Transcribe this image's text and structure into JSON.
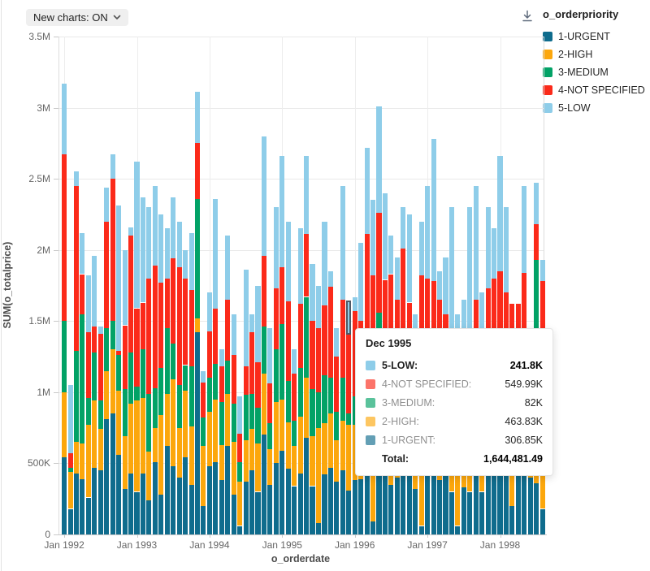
{
  "toolbar": {
    "new_charts_label": "New charts: ON"
  },
  "download_icon": "download-icon",
  "legend": {
    "title": "o_orderpriority",
    "items": [
      {
        "label": "1-URGENT",
        "color": "#0f6c8d"
      },
      {
        "label": "2-HIGH",
        "color": "#fca70c"
      },
      {
        "label": "3-MEDIUM",
        "color": "#02a266"
      },
      {
        "label": "4-NOT SPECIFIED",
        "color": "#fb2a1a"
      },
      {
        "label": "5-LOW",
        "color": "#8ecde9"
      }
    ]
  },
  "tooltip": {
    "title": "Dec 1995",
    "rows": [
      {
        "series": "5-LOW",
        "label": "5-LOW:",
        "value": "241.8K",
        "emphasis": true
      },
      {
        "series": "4-NOT SPECIFIED",
        "label": "4-NOT SPECIFIED:",
        "value": "549.99K",
        "emphasis": false
      },
      {
        "series": "3-MEDIUM",
        "label": "3-MEDIUM:",
        "value": "82K",
        "emphasis": false
      },
      {
        "series": "2-HIGH",
        "label": "2-HIGH:",
        "value": "463.83K",
        "emphasis": false
      },
      {
        "series": "1-URGENT",
        "label": "1-URGENT:",
        "value": "306.85K",
        "emphasis": false
      }
    ],
    "total_label": "Total:",
    "total_value": "1,644,481.49"
  },
  "chart_data": {
    "type": "bar",
    "stacked": true,
    "xlabel": "o_orderdate",
    "ylabel": "SUM(o_totalprice)",
    "ylim": [
      0,
      3500000
    ],
    "grid": true,
    "legend_position": "top-right",
    "series_order": [
      "1-URGENT",
      "2-HIGH",
      "3-MEDIUM",
      "4-NOT SPECIFIED",
      "5-LOW"
    ],
    "y_ticks": [
      {
        "label": "0",
        "value_k": 0
      },
      {
        "label": "500K",
        "value_k": 500
      },
      {
        "label": "1M",
        "value_k": 1000
      },
      {
        "label": "1.5M",
        "value_k": 1500
      },
      {
        "label": "2M",
        "value_k": 2000
      },
      {
        "label": "2.5M",
        "value_k": 2500
      },
      {
        "label": "3M",
        "value_k": 3000
      },
      {
        "label": "3.5M",
        "value_k": 3500
      }
    ],
    "x_ticks": [
      {
        "label": "Jan 1992",
        "month_index": 0
      },
      {
        "label": "Jan 1993",
        "month_index": 12
      },
      {
        "label": "Jan 1994",
        "month_index": 24
      },
      {
        "label": "Jan 1995",
        "month_index": 36
      },
      {
        "label": "Jan 1996",
        "month_index": 48
      },
      {
        "label": "Jan 1997",
        "month_index": 60
      },
      {
        "label": "Jan 1998",
        "month_index": 72
      }
    ],
    "hover": {
      "month_index": 47,
      "series": "5-LOW"
    },
    "values_unit": "thousands",
    "months": [
      {
        "label": "Jan 1992",
        "values": [
          540,
          460,
          500,
          1170,
          500
        ]
      },
      {
        "label": "Feb 1992",
        "values": [
          180,
          260,
          30,
          100,
          480
        ]
      },
      {
        "label": "Mar 1992",
        "values": [
          430,
          220,
          640,
          1160,
          100
        ]
      },
      {
        "label": "Apr 1992",
        "values": [
          390,
          250,
          910,
          280,
          290
        ]
      },
      {
        "label": "May 1992",
        "values": [
          260,
          510,
          190,
          460,
          400
        ]
      },
      {
        "label": "Jun 1992",
        "values": [
          470,
          470,
          340,
          180,
          500
        ]
      },
      {
        "label": "Jul 1992",
        "values": [
          450,
          290,
          200,
          470,
          50
        ]
      },
      {
        "label": "Aug 1992",
        "values": [
          810,
          340,
          300,
          750,
          240
        ]
      },
      {
        "label": "Sep 1992",
        "values": [
          850,
          450,
          200,
          1000,
          170
        ]
      },
      {
        "label": "Oct 1992",
        "values": [
          560,
          450,
          250,
          30,
          1020
        ]
      },
      {
        "label": "Nov 1992",
        "values": [
          320,
          370,
          330,
          450,
          530
        ]
      },
      {
        "label": "Dec 1992",
        "values": [
          430,
          490,
          360,
          820,
          60
        ]
      },
      {
        "label": "Jan 1993",
        "values": [
          300,
          640,
          100,
          550,
          1030
        ]
      },
      {
        "label": "Feb 1993",
        "values": [
          430,
          530,
          340,
          330,
          740
        ]
      },
      {
        "label": "Mar 1993",
        "values": [
          240,
          340,
          410,
          810,
          500
        ]
      },
      {
        "label": "Apr 1993",
        "values": [
          510,
          240,
          280,
          860,
          560
        ]
      },
      {
        "label": "May 1993",
        "values": [
          280,
          560,
          330,
          600,
          480
        ]
      },
      {
        "label": "Jun 1993",
        "values": [
          620,
          370,
          460,
          350,
          350
        ]
      },
      {
        "label": "Jul 1993",
        "values": [
          480,
          610,
          250,
          600,
          430
        ]
      },
      {
        "label": "Aug 1993",
        "values": [
          400,
          350,
          300,
          830,
          320
        ]
      },
      {
        "label": "Sep 1993",
        "values": [
          540,
          470,
          180,
          610,
          200
        ]
      },
      {
        "label": "Oct 1993",
        "values": [
          350,
          410,
          420,
          540,
          400
        ]
      },
      {
        "label": "Nov 1993",
        "values": [
          1420,
          100,
          840,
          390,
          360
        ]
      },
      {
        "label": "Dec 1993",
        "values": [
          200,
          420,
          200,
          250,
          80
        ]
      },
      {
        "label": "Jan 1994",
        "values": [
          480,
          380,
          240,
          330,
          270
        ]
      },
      {
        "label": "Feb 1994",
        "values": [
          510,
          440,
          250,
          390,
          770
        ]
      },
      {
        "label": "Mar 1994",
        "values": [
          380,
          250,
          300,
          250,
          120
        ]
      },
      {
        "label": "Apr 1994",
        "values": [
          620,
          370,
          230,
          430,
          450
        ]
      },
      {
        "label": "May 1994",
        "values": [
          280,
          370,
          270,
          340,
          290
        ]
      },
      {
        "label": "Jun 1994",
        "values": [
          60,
          310,
          140,
          200,
          260
        ]
      },
      {
        "label": "Jul 1994",
        "values": [
          370,
          290,
          320,
          200,
          680
        ]
      },
      {
        "label": "Aug 1994",
        "values": [
          450,
          290,
          250,
          430,
          130
        ]
      },
      {
        "label": "Sep 1994",
        "values": [
          300,
          340,
          250,
          320,
          540
        ]
      },
      {
        "label": "Oct 1994",
        "values": [
          700,
          430,
          330,
          500,
          840
        ]
      },
      {
        "label": "Nov 1994",
        "values": [
          350,
          250,
          180,
          280,
          390
        ]
      },
      {
        "label": "Dec 1994",
        "values": [
          500,
          430,
          370,
          430,
          570
        ]
      },
      {
        "label": "Jan 1995",
        "values": [
          590,
          360,
          530,
          400,
          780
        ]
      },
      {
        "label": "Feb 1995",
        "values": [
          460,
          330,
          290,
          560,
          560
        ]
      },
      {
        "label": "Mar 1995",
        "values": [
          340,
          280,
          180,
          330,
          170
        ]
      },
      {
        "label": "Apr 1995",
        "values": [
          430,
          400,
          340,
          450,
          530
        ]
      },
      {
        "label": "May 1995",
        "values": [
          680,
          420,
          570,
          440,
          550
        ]
      },
      {
        "label": "Jun 1995",
        "values": [
          340,
          350,
          330,
          480,
          400
        ]
      },
      {
        "label": "Jul 1995",
        "values": [
          80,
          670,
          250,
          450,
          300
        ]
      },
      {
        "label": "Aug 1995",
        "values": [
          420,
          360,
          340,
          490,
          590
        ]
      },
      {
        "label": "Sep 1995",
        "values": [
          470,
          380,
          250,
          640,
          110
        ]
      },
      {
        "label": "Oct 1995",
        "values": [
          370,
          290,
          200,
          390,
          200
        ]
      },
      {
        "label": "Nov 1995",
        "values": [
          450,
          350,
          300,
          550,
          800
        ]
      },
      {
        "label": "Dec 1995",
        "values": [
          306.85,
          463.83,
          82,
          549.99,
          241.8
        ]
      },
      {
        "label": "Jan 1996",
        "values": [
          380,
          390,
          200,
          600,
          100
        ]
      },
      {
        "label": "Feb 1996",
        "values": [
          390,
          450,
          340,
          320,
          550
        ]
      },
      {
        "label": "Mar 1996",
        "values": [
          430,
          340,
          290,
          1050,
          610
        ]
      },
      {
        "label": "Apr 1996",
        "values": [
          90,
          810,
          280,
          640,
          530
        ]
      },
      {
        "label": "May 1996",
        "values": [
          640,
          500,
          420,
          700,
          750
        ]
      },
      {
        "label": "Jun 1996",
        "values": [
          520,
          430,
          300,
          540,
          610
        ]
      },
      {
        "label": "Jul 1996",
        "values": [
          350,
          380,
          270,
          830,
          270
        ]
      },
      {
        "label": "Aug 1996",
        "values": [
          400,
          350,
          300,
          600,
          300
        ]
      },
      {
        "label": "Sep 1996",
        "values": [
          430,
          430,
          250,
          900,
          290
        ]
      },
      {
        "label": "Oct 1996",
        "values": [
          540,
          400,
          350,
          340,
          620
        ]
      },
      {
        "label": "Nov 1996",
        "values": [
          320,
          300,
          180,
          460,
          290
        ]
      },
      {
        "label": "Dec 1996",
        "values": [
          60,
          720,
          300,
          740,
          380
        ]
      },
      {
        "label": "Jan 1997",
        "values": [
          520,
          380,
          300,
          600,
          650
        ]
      },
      {
        "label": "Feb 1997",
        "values": [
          450,
          420,
          350,
          560,
          1000
        ]
      },
      {
        "label": "Mar 1997",
        "values": [
          380,
          330,
          250,
          690,
          200
        ]
      },
      {
        "label": "Apr 1997",
        "values": [
          430,
          350,
          300,
          470,
          400
        ]
      },
      {
        "label": "May 1997",
        "values": [
          300,
          250,
          200,
          300,
          1250
        ]
      },
      {
        "label": "Jun 1997",
        "values": [
          60,
          530,
          230,
          330,
          400
        ]
      },
      {
        "label": "Jul 1997",
        "values": [
          330,
          300,
          250,
          280,
          490
        ]
      },
      {
        "label": "Aug 1997",
        "values": [
          300,
          250,
          150,
          230,
          1370
        ]
      },
      {
        "label": "Sep 1997",
        "values": [
          430,
          380,
          300,
          540,
          800
        ]
      },
      {
        "label": "Oct 1997",
        "values": [
          300,
          280,
          220,
          500,
          400
        ]
      },
      {
        "label": "Nov 1997",
        "values": [
          420,
          350,
          300,
          660,
          570
        ]
      },
      {
        "label": "Dec 1997",
        "values": [
          450,
          400,
          350,
          600,
          350
        ]
      },
      {
        "label": "Jan 1998",
        "values": [
          500,
          450,
          250,
          650,
          810
        ]
      },
      {
        "label": "Feb 1998",
        "values": [
          500,
          430,
          300,
          470,
          600
        ]
      },
      {
        "label": "Mar 1998",
        "values": [
          200,
          250,
          820,
          350,
          0
        ]
      },
      {
        "label": "Apr 1998",
        "values": [
          450,
          350,
          200,
          620,
          0
        ]
      },
      {
        "label": "May 1998",
        "values": [
          520,
          450,
          350,
          520,
          610
        ]
      },
      {
        "label": "Jun 1998",
        "values": [
          400,
          300,
          280,
          470,
          0
        ]
      },
      {
        "label": "Jul 1998",
        "values": [
          360,
          720,
          850,
          250,
          290
        ]
      },
      {
        "label": "Aug 1998",
        "values": [
          180,
          330,
          270,
          1000,
          150
        ]
      }
    ]
  }
}
